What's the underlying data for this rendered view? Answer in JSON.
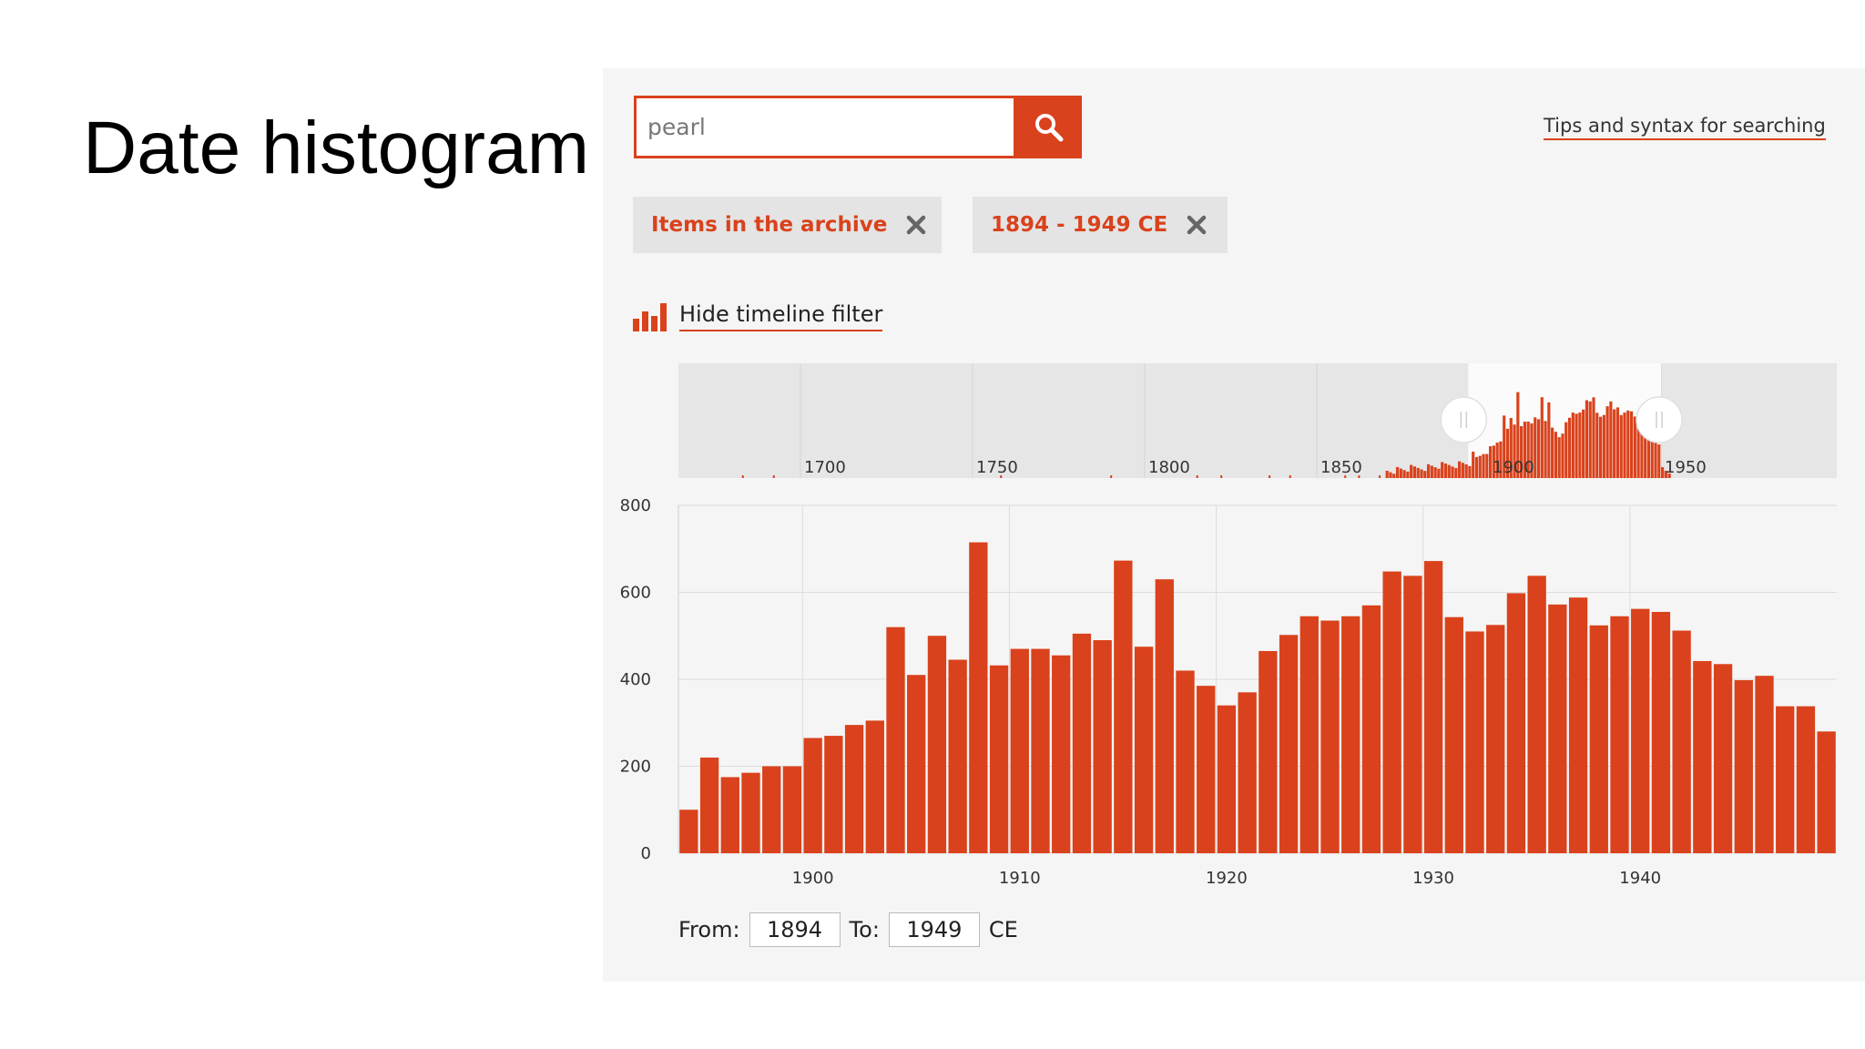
{
  "slide": {
    "title": "Date histogram"
  },
  "search": {
    "value": "pearl",
    "button_icon": "search-icon"
  },
  "tips": {
    "label": "Tips and syntax for searching"
  },
  "filters": [
    {
      "label": "Items in the archive",
      "close_icon": "close-icon"
    },
    {
      "label": "1894 - 1949 CE",
      "close_icon": "close-icon"
    }
  ],
  "timeline_toggle": {
    "label": "Hide timeline filter",
    "icon": "bar-chart-icon"
  },
  "overview": {
    "tick_labels": [
      "1700",
      "1750",
      "1800",
      "1850",
      "1900",
      "1950"
    ],
    "selection": {
      "from": 1894,
      "to": 1949
    }
  },
  "range": {
    "from_label": "From:",
    "from_value": "1894",
    "to_label": "To:",
    "to_value": "1949",
    "unit": "CE"
  },
  "colors": {
    "accent": "#d9421c",
    "panel_bg": "#f5f5f5",
    "chip_bg": "#e4e4e4"
  },
  "chart_data": [
    {
      "type": "bar",
      "x": [
        1894,
        1895,
        1896,
        1897,
        1898,
        1899,
        1900,
        1901,
        1902,
        1903,
        1904,
        1905,
        1906,
        1907,
        1908,
        1909,
        1910,
        1911,
        1912,
        1913,
        1914,
        1915,
        1916,
        1917,
        1918,
        1919,
        1920,
        1921,
        1922,
        1923,
        1924,
        1925,
        1926,
        1927,
        1928,
        1929,
        1930,
        1931,
        1932,
        1933,
        1934,
        1935,
        1936,
        1937,
        1938,
        1939,
        1940,
        1941,
        1942,
        1943,
        1944,
        1945,
        1946,
        1947,
        1948,
        1949
      ],
      "values": [
        100,
        220,
        175,
        185,
        200,
        200,
        265,
        270,
        295,
        305,
        520,
        410,
        500,
        445,
        715,
        432,
        470,
        470,
        455,
        505,
        490,
        673,
        475,
        630,
        420,
        385,
        340,
        370,
        465,
        502,
        545,
        535,
        545,
        570,
        648,
        638,
        672,
        543,
        510,
        525,
        598,
        638,
        572,
        588,
        524,
        545,
        562,
        555,
        512,
        442,
        435,
        398,
        408,
        338,
        338,
        280
      ],
      "xlim": [
        1894,
        1949
      ],
      "ylim": [
        0,
        800
      ],
      "xticks": [
        "1900",
        "1910",
        "1920",
        "1930",
        "1940"
      ],
      "yticks": [
        "0",
        "200",
        "400",
        "600",
        "800"
      ],
      "grid": true
    }
  ]
}
